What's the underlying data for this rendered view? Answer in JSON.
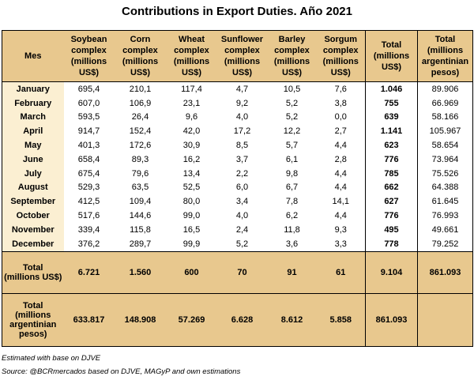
{
  "title": "Contributions in Export Duties. Año 2021",
  "headers": {
    "mes": "Mes",
    "soy": "Soybean complex (millions US$)",
    "corn": "Corn complex (millions US$)",
    "wheat": "Wheat complex (millions US$)",
    "sunflower": "Sunflower complex (millions US$)",
    "barley": "Barley complex (millions US$)",
    "sorgum": "Sorgum complex (millions US$)",
    "total_usd": "Total (millions US$)",
    "total_pesos": "Total (millions argentinian pesos)"
  },
  "rows": [
    {
      "mes": "January",
      "soy": "695,4",
      "corn": "210,1",
      "wheat": "117,4",
      "sunflower": "4,7",
      "barley": "10,5",
      "sorgum": "7,6",
      "total_usd": "1.046",
      "total_pesos": "89.906"
    },
    {
      "mes": "February",
      "soy": "607,0",
      "corn": "106,9",
      "wheat": "23,1",
      "sunflower": "9,2",
      "barley": "5,2",
      "sorgum": "3,8",
      "total_usd": "755",
      "total_pesos": "66.969"
    },
    {
      "mes": "March",
      "soy": "593,5",
      "corn": "26,4",
      "wheat": "9,6",
      "sunflower": "4,0",
      "barley": "5,2",
      "sorgum": "0,0",
      "total_usd": "639",
      "total_pesos": "58.166"
    },
    {
      "mes": "April",
      "soy": "914,7",
      "corn": "152,4",
      "wheat": "42,0",
      "sunflower": "17,2",
      "barley": "12,2",
      "sorgum": "2,7",
      "total_usd": "1.141",
      "total_pesos": "105.967"
    },
    {
      "mes": "May",
      "soy": "401,3",
      "corn": "172,6",
      "wheat": "30,9",
      "sunflower": "8,5",
      "barley": "5,7",
      "sorgum": "4,4",
      "total_usd": "623",
      "total_pesos": "58.654"
    },
    {
      "mes": "June",
      "soy": "658,4",
      "corn": "89,3",
      "wheat": "16,2",
      "sunflower": "3,7",
      "barley": "6,1",
      "sorgum": "2,8",
      "total_usd": "776",
      "total_pesos": "73.964"
    },
    {
      "mes": "July",
      "soy": "675,4",
      "corn": "79,6",
      "wheat": "13,4",
      "sunflower": "2,2",
      "barley": "9,8",
      "sorgum": "4,4",
      "total_usd": "785",
      "total_pesos": "75.526"
    },
    {
      "mes": "August",
      "soy": "529,3",
      "corn": "63,5",
      "wheat": "52,5",
      "sunflower": "6,0",
      "barley": "6,7",
      "sorgum": "4,4",
      "total_usd": "662",
      "total_pesos": "64.388"
    },
    {
      "mes": "September",
      "soy": "412,5",
      "corn": "109,4",
      "wheat": "80,0",
      "sunflower": "3,4",
      "barley": "7,8",
      "sorgum": "14,1",
      "total_usd": "627",
      "total_pesos": "61.645"
    },
    {
      "mes": "October",
      "soy": "517,6",
      "corn": "144,6",
      "wheat": "99,0",
      "sunflower": "4,0",
      "barley": "6,2",
      "sorgum": "4,4",
      "total_usd": "776",
      "total_pesos": "76.993"
    },
    {
      "mes": "November",
      "soy": "339,4",
      "corn": "115,8",
      "wheat": "16,5",
      "sunflower": "2,4",
      "barley": "11,8",
      "sorgum": "9,3",
      "total_usd": "495",
      "total_pesos": "49.661"
    },
    {
      "mes": "December",
      "soy": "376,2",
      "corn": "289,7",
      "wheat": "99,9",
      "sunflower": "5,2",
      "barley": "3,6",
      "sorgum": "3,3",
      "total_usd": "778",
      "total_pesos": "79.252"
    }
  ],
  "total_usd_row": {
    "label": "Total (millions US$)",
    "soy": "6.721",
    "corn": "1.560",
    "wheat": "600",
    "sunflower": "70",
    "barley": "91",
    "sorgum": "61",
    "total_usd": "9.104",
    "total_pesos": "861.093"
  },
  "total_pesos_row": {
    "label": "Total (millions argentinian pesos)",
    "soy": "633.817",
    "corn": "148.908",
    "wheat": "57.269",
    "sunflower": "6.628",
    "barley": "8.612",
    "sorgum": "5.858",
    "total_usd": "861.093",
    "total_pesos": ""
  },
  "footnote1": "Estimated with base on DJVE",
  "footnote2": "Source: @BCRmercados based on DJVE, MAGyP and own estimations",
  "colors": {
    "header_bg": "#e8c88e",
    "month_bg": "#fbefd2"
  }
}
